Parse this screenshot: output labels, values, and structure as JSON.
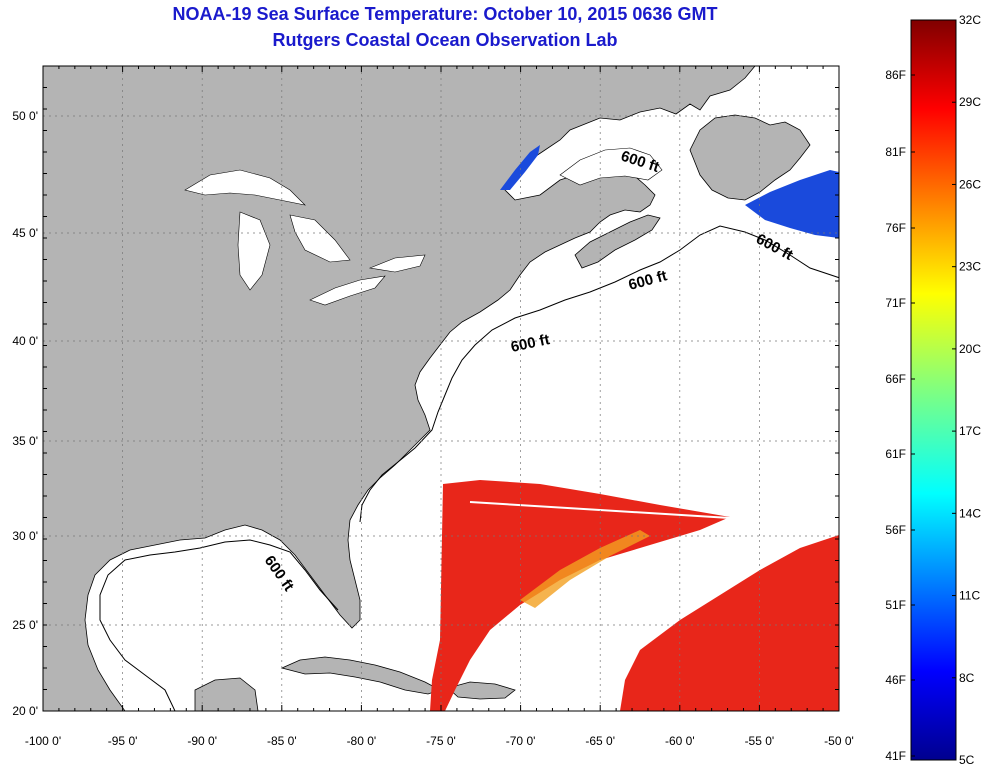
{
  "title": "NOAA-19 Sea Surface Temperature:  October 10, 2015 0636 GMT",
  "subtitle": "Rutgers Coastal Ocean Observation Lab",
  "x_ticks": [
    "-100 0'",
    "-95 0'",
    "-90 0'",
    "-85 0'",
    "-80 0'",
    "-75 0'",
    "-70 0'",
    "-65 0'",
    "-60 0'",
    "-55 0'",
    "-50 0'"
  ],
  "y_ticks": [
    "50 0'",
    "45 0'",
    "40 0'",
    "35 0'",
    "30 0'",
    "25 0'",
    "20 0'"
  ],
  "contour_label": "600 ft",
  "colorbar": {
    "celsius": [
      "32C",
      "29C",
      "26C",
      "23C",
      "20C",
      "17C",
      "14C",
      "11C",
      "8C",
      "5C"
    ],
    "fahrenheit": [
      "86F",
      "81F",
      "76F",
      "71F",
      "66F",
      "61F",
      "56F",
      "51F",
      "46F",
      "41F"
    ]
  },
  "colors": {
    "title": "#1a1acc",
    "land": "#b4b4b4",
    "ocean": "#ffffff",
    "sst_warm": "#e8261a",
    "sst_cool": "#1a4adc"
  }
}
